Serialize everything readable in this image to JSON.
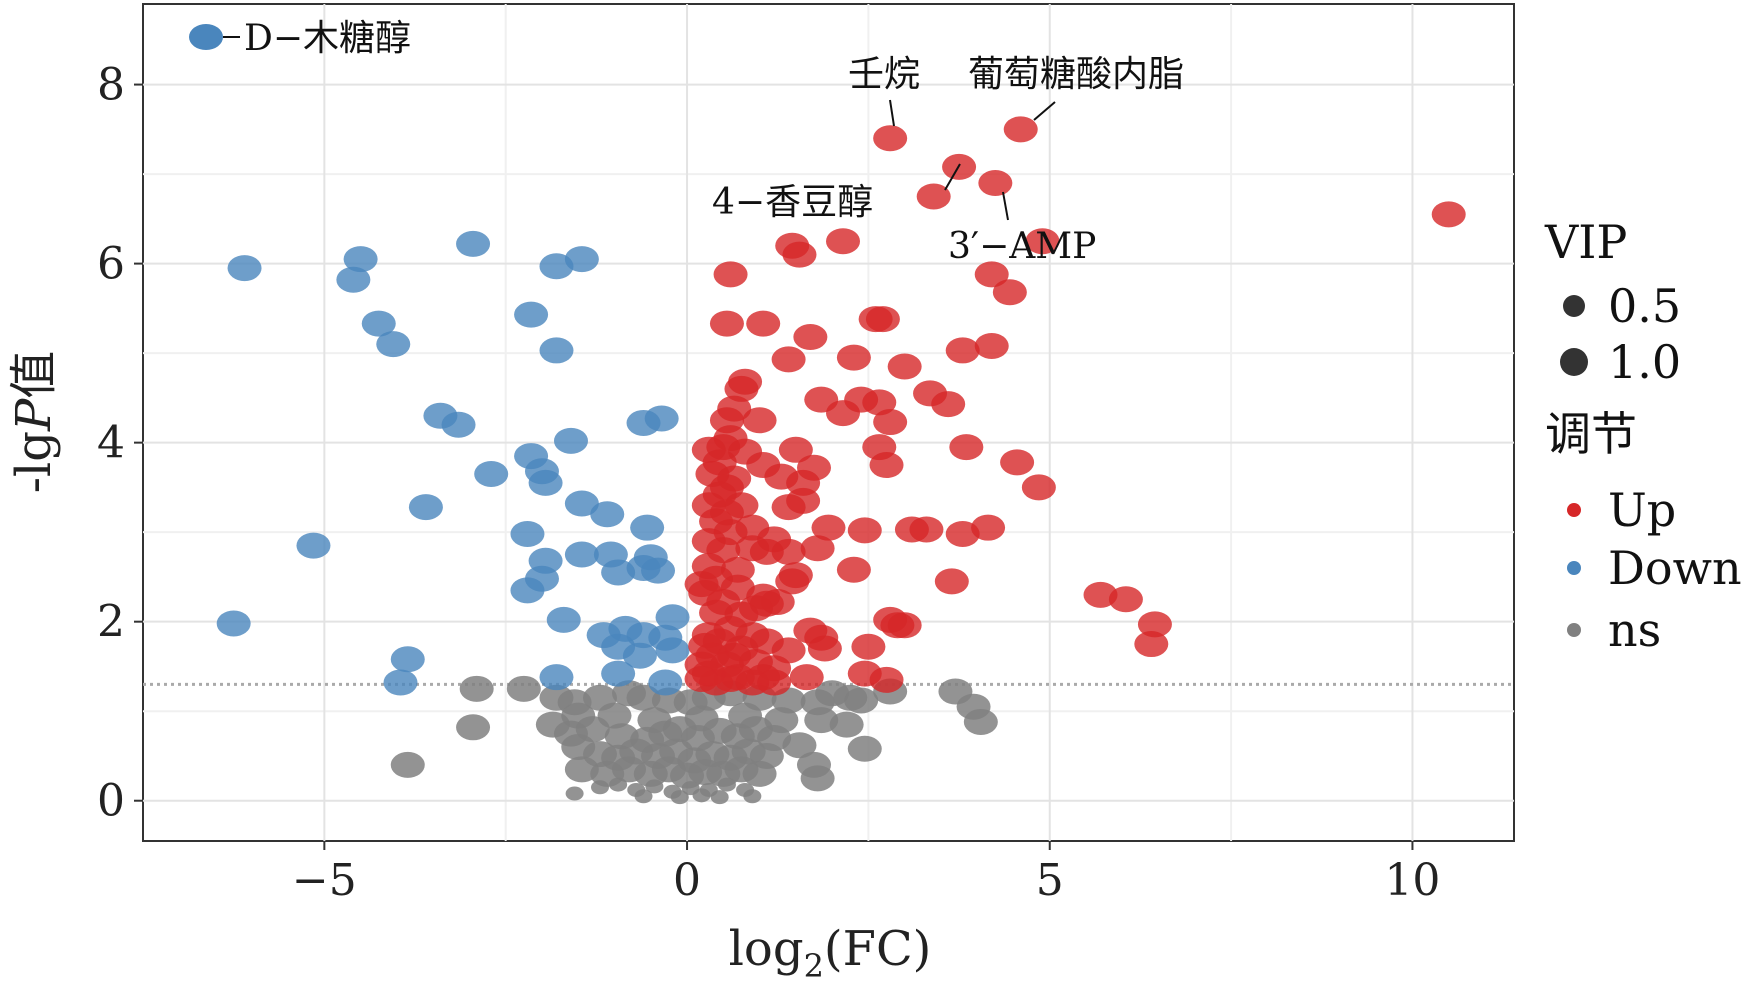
{
  "chart_data": {
    "type": "scatter",
    "title": "",
    "xlabel": "log2(FC)",
    "xlabel_main": "log",
    "xlabel_sub": "2",
    "xlabel_tail": "(FC)",
    "ylabel": "-lgP值",
    "ylabel_prefix": "-lg",
    "ylabel_italic": "P",
    "ylabel_suffix": "值",
    "xlim": [
      -7.5,
      11.4
    ],
    "ylim": [
      -0.45,
      8.9
    ],
    "x_ticks": [
      -5,
      0,
      5,
      10
    ],
    "x_tick_labels": [
      "−5",
      "0",
      "5",
      "10"
    ],
    "y_ticks": [
      0,
      2,
      4,
      6,
      8
    ],
    "y_tick_labels": [
      "0",
      "2",
      "4",
      "6",
      "8"
    ],
    "grid": true,
    "threshold_y": 1.3,
    "colors": {
      "Up": "#d62728",
      "Down": "#4a86bd",
      "ns": "#808080"
    },
    "legend": {
      "placement": "right",
      "size_title": "VIP",
      "size_items": [
        {
          "label": "0.5",
          "vip": 0.5
        },
        {
          "label": "1.0",
          "vip": 1.0
        }
      ],
      "color_title": "调节",
      "color_items": [
        {
          "label": "Up",
          "key": "Up"
        },
        {
          "label": "Down",
          "key": "Down"
        },
        {
          "label": "ns",
          "key": "ns"
        }
      ]
    },
    "inset_label": {
      "text": "D−木糖醇",
      "key": "Down"
    },
    "annotations": [
      {
        "text": "壬烷",
        "x": 2.75,
        "y": 7.4
      },
      {
        "text": "葡萄糖酸内脂",
        "x": 4.6,
        "y": 7.5
      },
      {
        "text": "4−香豆醇",
        "x": 3.4,
        "y": 6.75
      },
      {
        "text": "3′−AMP",
        "x": 4.25,
        "y": 6.9
      }
    ],
    "series": [
      {
        "name": "Up",
        "points": [
          [
            10.5,
            6.55
          ],
          [
            4.6,
            7.5
          ],
          [
            2.8,
            7.4
          ],
          [
            3.75,
            7.08
          ],
          [
            4.25,
            6.9
          ],
          [
            3.4,
            6.75
          ],
          [
            4.9,
            6.25
          ],
          [
            2.15,
            6.25
          ],
          [
            1.45,
            6.2
          ],
          [
            1.55,
            6.1
          ],
          [
            0.6,
            5.88
          ],
          [
            4.2,
            5.88
          ],
          [
            4.45,
            5.68
          ],
          [
            0.55,
            5.33
          ],
          [
            1.05,
            5.33
          ],
          [
            2.6,
            5.38
          ],
          [
            2.7,
            5.38
          ],
          [
            1.7,
            5.18
          ],
          [
            3.8,
            5.03
          ],
          [
            4.2,
            5.08
          ],
          [
            1.4,
            4.93
          ],
          [
            2.3,
            4.95
          ],
          [
            3.0,
            4.85
          ],
          [
            0.8,
            4.68
          ],
          [
            0.75,
            4.6
          ],
          [
            3.35,
            4.55
          ],
          [
            1.85,
            4.48
          ],
          [
            2.4,
            4.48
          ],
          [
            2.65,
            4.45
          ],
          [
            3.6,
            4.43
          ],
          [
            0.65,
            4.38
          ],
          [
            2.15,
            4.33
          ],
          [
            0.55,
            4.25
          ],
          [
            1.0,
            4.25
          ],
          [
            2.8,
            4.23
          ],
          [
            0.6,
            4.05
          ],
          [
            2.65,
            3.95
          ],
          [
            3.85,
            3.95
          ],
          [
            0.3,
            3.92
          ],
          [
            0.5,
            3.95
          ],
          [
            0.8,
            3.9
          ],
          [
            1.5,
            3.92
          ],
          [
            0.45,
            3.78
          ],
          [
            1.05,
            3.75
          ],
          [
            1.75,
            3.72
          ],
          [
            2.75,
            3.75
          ],
          [
            4.55,
            3.78
          ],
          [
            0.35,
            3.65
          ],
          [
            0.65,
            3.6
          ],
          [
            1.3,
            3.62
          ],
          [
            1.6,
            3.55
          ],
          [
            0.55,
            3.5
          ],
          [
            0.45,
            3.42
          ],
          [
            1.6,
            3.35
          ],
          [
            4.85,
            3.5
          ],
          [
            0.3,
            3.3
          ],
          [
            0.75,
            3.3
          ],
          [
            1.4,
            3.28
          ],
          [
            0.55,
            3.22
          ],
          [
            0.4,
            3.12
          ],
          [
            0.9,
            3.05
          ],
          [
            1.95,
            3.05
          ],
          [
            2.45,
            3.02
          ],
          [
            3.1,
            3.03
          ],
          [
            3.3,
            3.03
          ],
          [
            3.8,
            2.98
          ],
          [
            4.15,
            3.05
          ],
          [
            0.6,
            3.0
          ],
          [
            0.3,
            2.9
          ],
          [
            1.2,
            2.92
          ],
          [
            0.9,
            2.82
          ],
          [
            1.8,
            2.82
          ],
          [
            0.5,
            2.8
          ],
          [
            1.1,
            2.78
          ],
          [
            1.4,
            2.78
          ],
          [
            0.3,
            2.62
          ],
          [
            0.7,
            2.58
          ],
          [
            2.3,
            2.58
          ],
          [
            1.5,
            2.52
          ],
          [
            0.4,
            2.48
          ],
          [
            1.45,
            2.45
          ],
          [
            3.65,
            2.45
          ],
          [
            0.2,
            2.42
          ],
          [
            0.7,
            2.38
          ],
          [
            0.25,
            2.32
          ],
          [
            1.05,
            2.28
          ],
          [
            5.7,
            2.3
          ],
          [
            6.05,
            2.25
          ],
          [
            0.5,
            2.22
          ],
          [
            1.25,
            2.22
          ],
          [
            0.95,
            2.15
          ],
          [
            1.1,
            2.2
          ],
          [
            0.4,
            2.1
          ],
          [
            0.75,
            2.08
          ],
          [
            2.8,
            2.02
          ],
          [
            2.9,
            1.96
          ],
          [
            3.0,
            1.96
          ],
          [
            6.45,
            1.97
          ],
          [
            0.6,
            1.92
          ],
          [
            1.7,
            1.9
          ],
          [
            0.3,
            1.85
          ],
          [
            0.9,
            1.85
          ],
          [
            1.85,
            1.82
          ],
          [
            0.45,
            1.78
          ],
          [
            1.1,
            1.78
          ],
          [
            0.25,
            1.73
          ],
          [
            2.5,
            1.72
          ],
          [
            1.9,
            1.7
          ],
          [
            0.75,
            1.7
          ],
          [
            6.4,
            1.75
          ],
          [
            1.4,
            1.68
          ],
          [
            0.35,
            1.62
          ],
          [
            0.65,
            1.62
          ],
          [
            0.2,
            1.52
          ],
          [
            0.55,
            1.52
          ],
          [
            0.95,
            1.55
          ],
          [
            1.2,
            1.48
          ],
          [
            2.45,
            1.42
          ],
          [
            0.3,
            1.42
          ],
          [
            0.7,
            1.38
          ],
          [
            0.2,
            1.36
          ],
          [
            0.6,
            1.36
          ],
          [
            1.05,
            1.38
          ],
          [
            1.65,
            1.38
          ],
          [
            2.75,
            1.35
          ],
          [
            0.4,
            1.32
          ],
          [
            0.9,
            1.32
          ],
          [
            1.2,
            1.32
          ]
        ]
      },
      {
        "name": "Down",
        "points": [
          [
            -6.1,
            5.95
          ],
          [
            -4.5,
            6.05
          ],
          [
            -4.6,
            5.82
          ],
          [
            -2.95,
            6.22
          ],
          [
            -1.8,
            5.97
          ],
          [
            -1.45,
            6.05
          ],
          [
            -2.15,
            5.43
          ],
          [
            -4.25,
            5.33
          ],
          [
            -4.05,
            5.1
          ],
          [
            -1.8,
            5.03
          ],
          [
            -3.4,
            4.3
          ],
          [
            -3.15,
            4.2
          ],
          [
            -0.6,
            4.22
          ],
          [
            -0.35,
            4.27
          ],
          [
            -1.6,
            4.02
          ],
          [
            -2.15,
            3.85
          ],
          [
            -2.0,
            3.68
          ],
          [
            -2.7,
            3.65
          ],
          [
            -1.95,
            3.55
          ],
          [
            -3.6,
            3.28
          ],
          [
            -1.45,
            3.32
          ],
          [
            -1.1,
            3.2
          ],
          [
            -0.55,
            3.05
          ],
          [
            -2.2,
            2.98
          ],
          [
            -5.15,
            2.85
          ],
          [
            -1.45,
            2.75
          ],
          [
            -1.05,
            2.75
          ],
          [
            -0.5,
            2.72
          ],
          [
            -1.95,
            2.68
          ],
          [
            -0.6,
            2.6
          ],
          [
            -0.95,
            2.55
          ],
          [
            -0.4,
            2.57
          ],
          [
            -2.0,
            2.48
          ],
          [
            -2.2,
            2.35
          ],
          [
            -6.25,
            1.98
          ],
          [
            -1.7,
            2.02
          ],
          [
            -0.2,
            2.05
          ],
          [
            -0.85,
            1.92
          ],
          [
            -0.6,
            1.85
          ],
          [
            -1.15,
            1.85
          ],
          [
            -0.3,
            1.82
          ],
          [
            -0.95,
            1.72
          ],
          [
            -0.2,
            1.68
          ],
          [
            -0.65,
            1.62
          ],
          [
            -3.85,
            1.58
          ],
          [
            -0.95,
            1.42
          ],
          [
            -1.8,
            1.38
          ],
          [
            -3.95,
            1.32
          ],
          [
            -0.3,
            1.32
          ]
        ]
      },
      {
        "name": "ns",
        "points": [
          [
            -2.9,
            1.25
          ],
          [
            -2.25,
            1.25
          ],
          [
            -1.8,
            1.15
          ],
          [
            -1.55,
            1.1
          ],
          [
            -1.2,
            1.15
          ],
          [
            -0.8,
            1.2
          ],
          [
            -0.6,
            1.15
          ],
          [
            -0.25,
            1.12
          ],
          [
            0.05,
            1.1
          ],
          [
            0.3,
            1.15
          ],
          [
            0.6,
            1.2
          ],
          [
            1.0,
            1.15
          ],
          [
            1.4,
            1.12
          ],
          [
            1.8,
            1.1
          ],
          [
            2.0,
            1.2
          ],
          [
            2.25,
            1.15
          ],
          [
            2.4,
            1.12
          ],
          [
            2.8,
            1.22
          ],
          [
            3.7,
            1.22
          ],
          [
            3.95,
            1.05
          ],
          [
            4.05,
            0.88
          ],
          [
            -1.5,
            0.95
          ],
          [
            -1.0,
            0.95
          ],
          [
            -0.45,
            0.9
          ],
          [
            0.2,
            0.92
          ],
          [
            0.8,
            0.95
          ],
          [
            1.3,
            0.9
          ],
          [
            1.85,
            0.9
          ],
          [
            2.2,
            0.85
          ],
          [
            -2.95,
            0.82
          ],
          [
            -1.85,
            0.85
          ],
          [
            -1.6,
            0.75
          ],
          [
            -1.3,
            0.8
          ],
          [
            -0.9,
            0.72
          ],
          [
            -0.55,
            0.68
          ],
          [
            -0.3,
            0.75
          ],
          [
            -0.1,
            0.8
          ],
          [
            0.15,
            0.7
          ],
          [
            0.45,
            0.78
          ],
          [
            0.7,
            0.72
          ],
          [
            0.95,
            0.8
          ],
          [
            1.2,
            0.7
          ],
          [
            1.55,
            0.62
          ],
          [
            2.45,
            0.58
          ],
          [
            -1.5,
            0.6
          ],
          [
            -1.2,
            0.52
          ],
          [
            -0.95,
            0.48
          ],
          [
            -0.7,
            0.55
          ],
          [
            -0.4,
            0.5
          ],
          [
            -0.15,
            0.55
          ],
          [
            0.1,
            0.45
          ],
          [
            0.35,
            0.52
          ],
          [
            0.6,
            0.48
          ],
          [
            0.85,
            0.55
          ],
          [
            1.1,
            0.5
          ],
          [
            1.75,
            0.4
          ],
          [
            -3.85,
            0.4
          ],
          [
            -1.45,
            0.35
          ],
          [
            -1.1,
            0.3
          ],
          [
            -0.8,
            0.35
          ],
          [
            -0.5,
            0.3
          ],
          [
            -0.25,
            0.35
          ],
          [
            0.0,
            0.28
          ],
          [
            0.25,
            0.32
          ],
          [
            0.5,
            0.3
          ],
          [
            0.75,
            0.35
          ],
          [
            1.0,
            0.3
          ],
          [
            1.8,
            0.25
          ],
          [
            -1.2,
            0.15
          ],
          [
            -0.95,
            0.18
          ],
          [
            -0.7,
            0.12
          ],
          [
            -0.45,
            0.16
          ],
          [
            -0.2,
            0.1
          ],
          [
            0.05,
            0.14
          ],
          [
            0.3,
            0.12
          ],
          [
            0.55,
            0.18
          ],
          [
            0.8,
            0.12
          ],
          [
            -1.55,
            0.08
          ],
          [
            -0.6,
            0.05
          ],
          [
            -0.1,
            0.04
          ],
          [
            0.2,
            0.06
          ],
          [
            0.45,
            0.04
          ],
          [
            0.9,
            0.05
          ]
        ]
      }
    ]
  }
}
